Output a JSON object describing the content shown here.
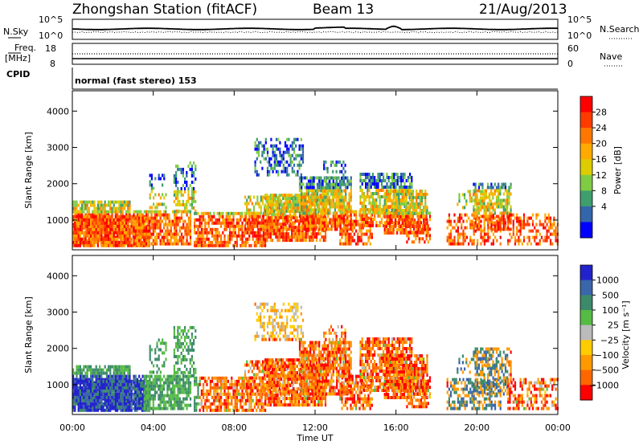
{
  "header": {
    "station": "Zhongshan Station (fitACF)",
    "beam": "Beam 13",
    "date": "21/Aug/2013"
  },
  "strips": {
    "nsky_label": "N.Sky",
    "nsky_ticks": [
      "10^5",
      "10^0"
    ],
    "nsearch_label": "N.Search",
    "nsearch_ticks": [
      "10^5",
      "10^0"
    ],
    "freq_label": "Freq.",
    "freq_unit": "[MHz]",
    "freq_ticks": [
      "18",
      "8"
    ],
    "nave_label": "Nave",
    "nave_ticks": [
      "60",
      "0"
    ],
    "cpid_label": "CPID",
    "cpid_text": "normal (fast stereo) 153"
  },
  "chart_data": [
    {
      "type": "heatmap",
      "ylabel": "Slant Range [km]",
      "yticks": [
        1000,
        2000,
        3000,
        4000
      ],
      "ylim": [
        180,
        4560
      ],
      "xlim_hours": [
        0,
        24
      ],
      "colorbar": {
        "label": "Power [dB]",
        "ticks": [
          "28",
          "24",
          "20",
          "16",
          "12",
          "8",
          "4"
        ],
        "colors_top_to_bottom": [
          "#ff0000",
          "#ff3b00",
          "#ff7700",
          "#ffaa00",
          "#ddcc00",
          "#7fcc44",
          "#3f9e6e",
          "#3366aa",
          "#0000ff"
        ]
      }
    },
    {
      "type": "heatmap",
      "ylabel": "Slant Range [km]",
      "yticks": [
        1000,
        2000,
        3000,
        4000
      ],
      "ylim": [
        180,
        4560
      ],
      "xlim_hours": [
        0,
        24
      ],
      "xlabel": "Time UT",
      "xticks": [
        "00:00",
        "04:00",
        "08:00",
        "12:00",
        "16:00",
        "20:00",
        "00:00"
      ],
      "colorbar": {
        "label": "Velocity [m s⁻¹]",
        "ticks": [
          "1000",
          "500",
          "100",
          "25",
          "−25",
          "−100",
          "−500",
          "−1000"
        ],
        "colors_top_to_bottom": [
          "#2222cc",
          "#3a66aa",
          "#3d8a6a",
          "#55bb44",
          "#bbbbbb",
          "#ffcc00",
          "#ff9900",
          "#ff6600",
          "#ff0000"
        ]
      }
    }
  ]
}
